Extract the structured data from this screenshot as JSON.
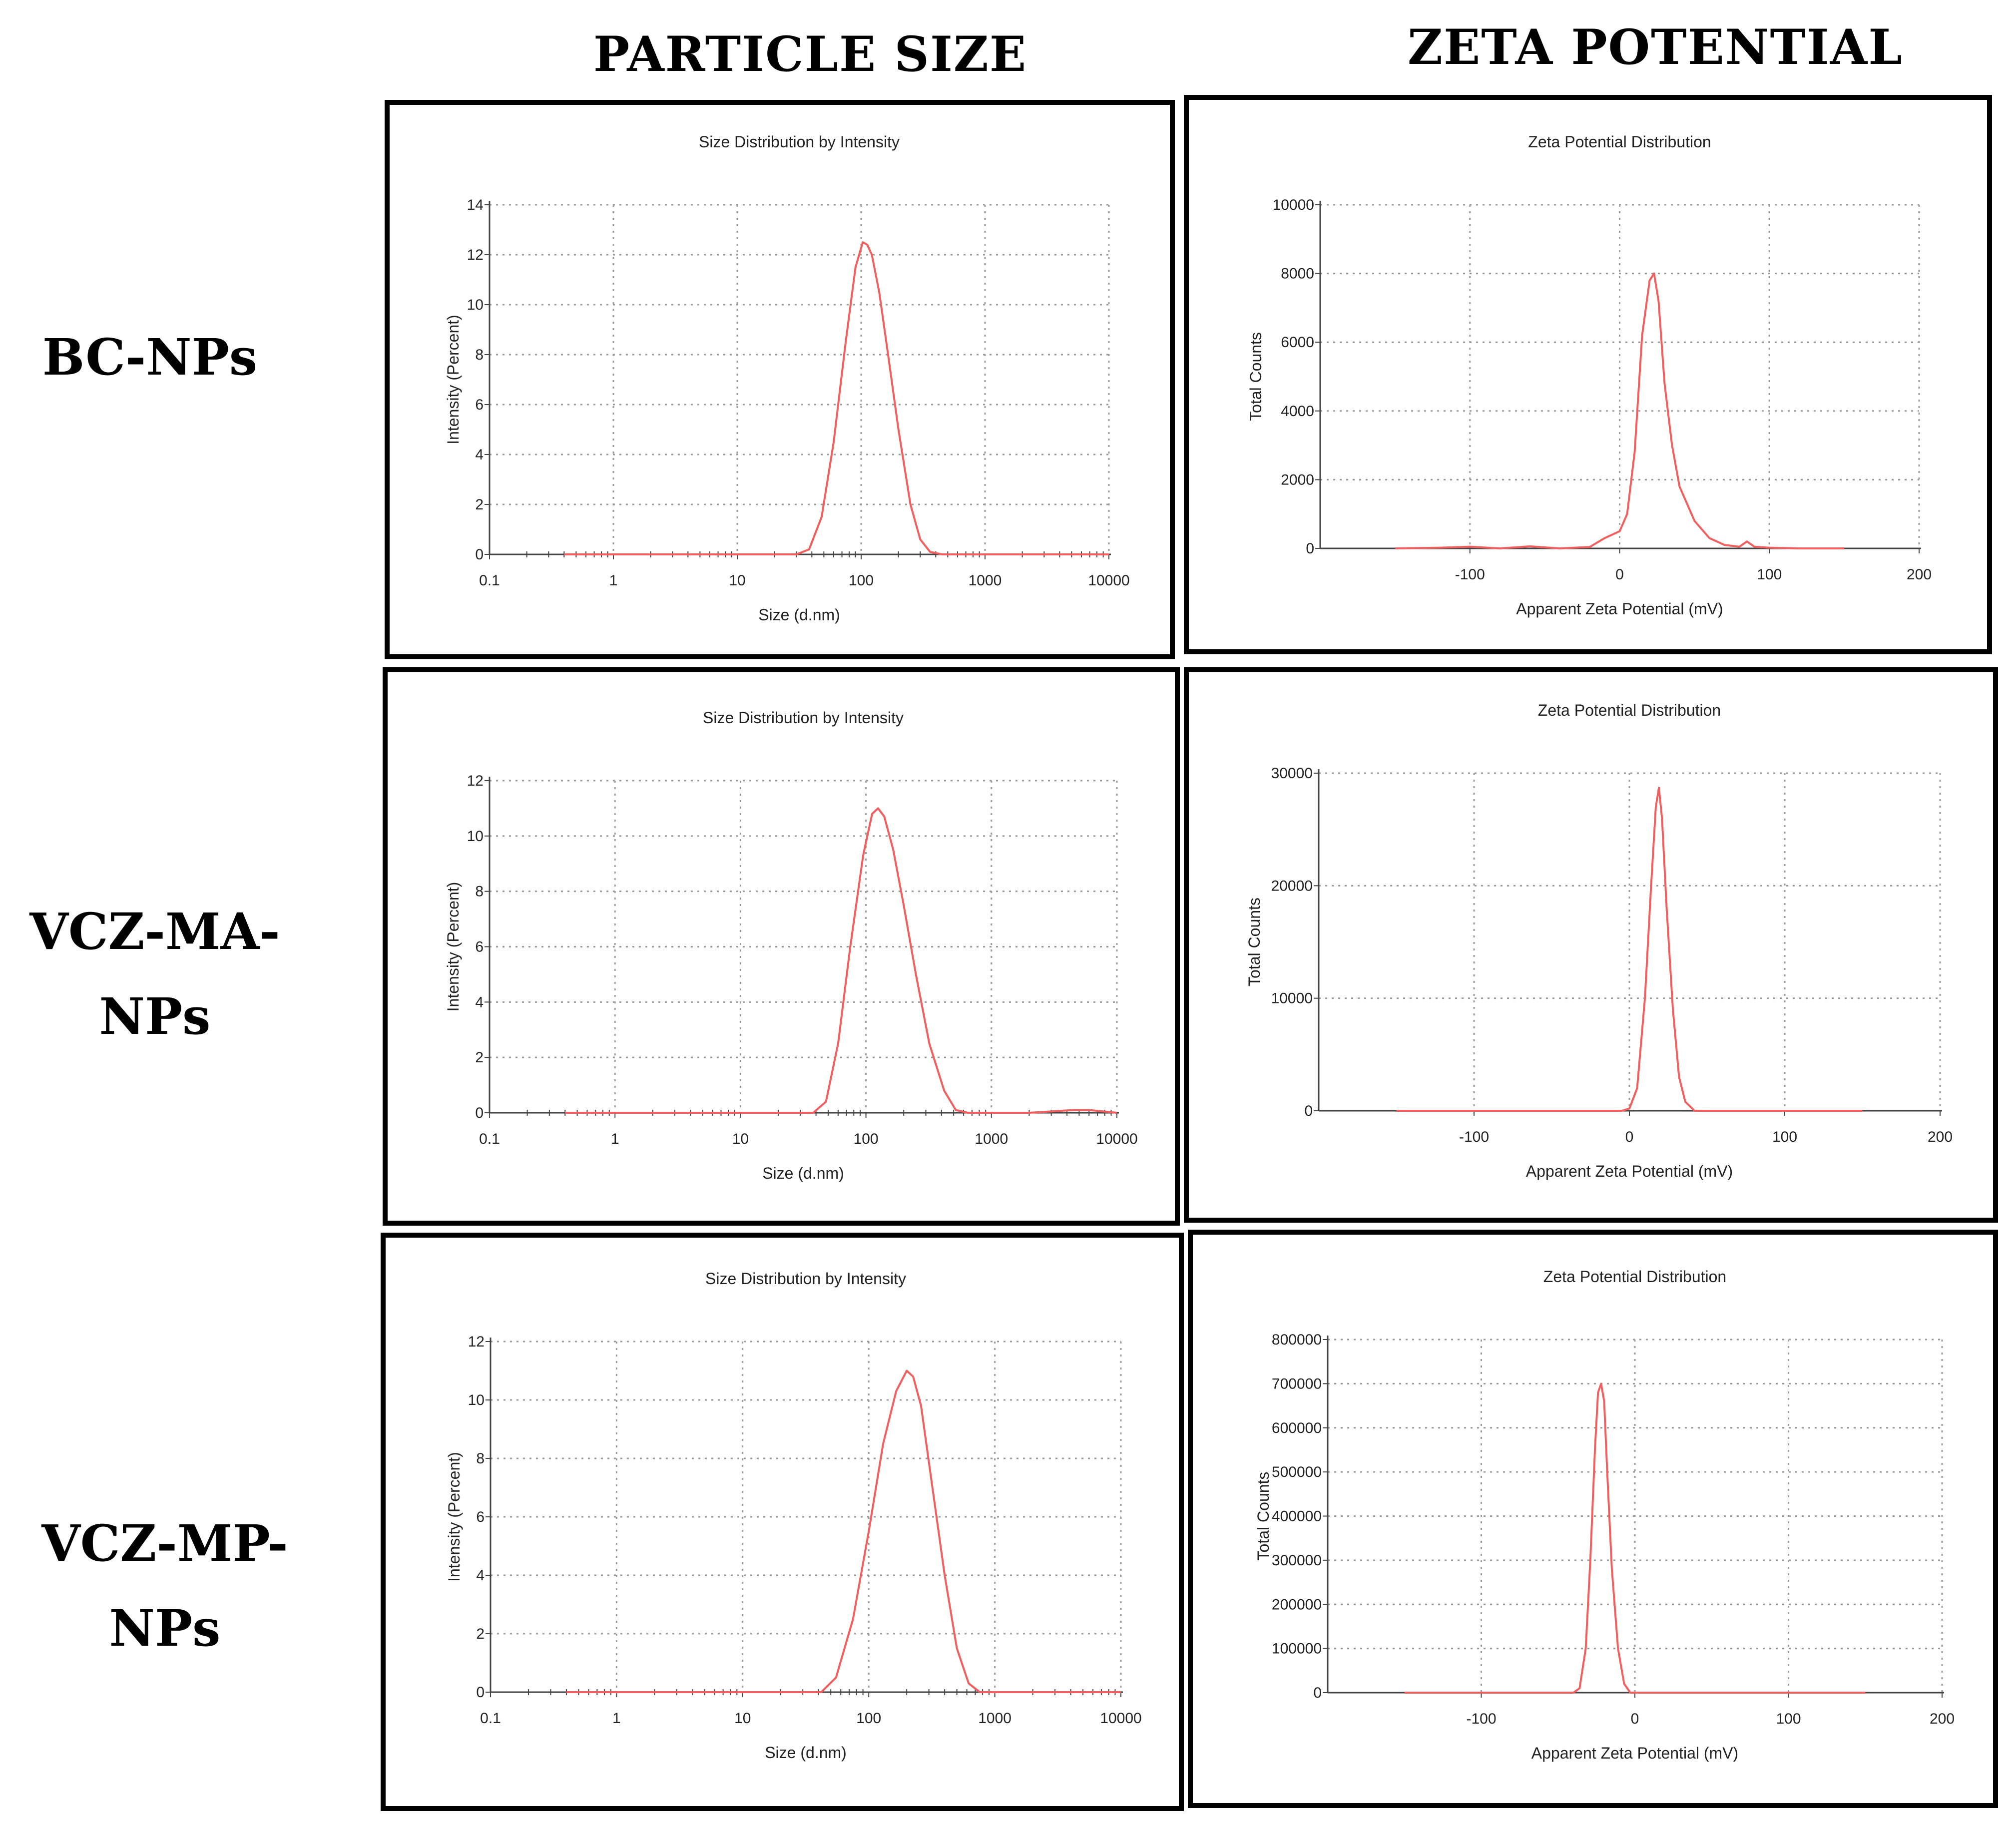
{
  "headers": {
    "particle_size": "PARTICLE SIZE",
    "zeta_potential": "ZETA POTENTIAL"
  },
  "rows": [
    {
      "label_lines": [
        "BC-NPs"
      ]
    },
    {
      "label_lines": [
        "VCZ-MA-",
        "NPs"
      ]
    },
    {
      "label_lines": [
        "VCZ-MP-",
        "NPs"
      ]
    }
  ],
  "colors": {
    "curve": "#f06060",
    "grid": "#9a9a9a",
    "axis": "#444444"
  },
  "chart_data": [
    {
      "id": "bc-size",
      "type": "line",
      "scale_x": "log",
      "title": "Size Distribution by Intensity",
      "xlabel": "Size (d.nm)",
      "ylabel": "Intensity (Percent)",
      "xlim": [
        0.1,
        10000
      ],
      "ylim": [
        0,
        14
      ],
      "xticks": [
        0.1,
        1,
        10,
        100,
        1000,
        10000
      ],
      "xtick_labels": [
        "0.1",
        "1",
        "10",
        "100",
        "1000",
        "10000"
      ],
      "yticks": [
        0,
        2,
        4,
        6,
        8,
        10,
        12,
        14
      ],
      "ytick_labels": [
        "0",
        "2",
        "4",
        "6",
        "8",
        "10",
        "12",
        "14"
      ],
      "series": [
        {
          "name": "Intensity",
          "x": [
            0.4,
            30,
            38,
            48,
            60,
            75,
            90,
            103,
            112,
            122,
            140,
            165,
            200,
            250,
            300,
            360,
            450,
            10000
          ],
          "y": [
            0,
            0,
            0.2,
            1.5,
            4.5,
            8.5,
            11.5,
            12.5,
            12.4,
            12,
            10.5,
            8,
            5,
            2,
            0.6,
            0.1,
            0,
            0
          ]
        }
      ]
    },
    {
      "id": "bc-zeta",
      "type": "line",
      "scale_x": "linear",
      "title": "Zeta Potential Distribution",
      "xlabel": "Apparent Zeta Potential (mV)",
      "ylabel": "Total Counts",
      "xlim": [
        -200,
        200
      ],
      "ylim": [
        0,
        10000
      ],
      "xticks": [
        -100,
        0,
        100,
        200
      ],
      "xtick_labels": [
        "-100",
        "0",
        "100",
        "200"
      ],
      "yticks": [
        0,
        2000,
        4000,
        6000,
        8000,
        10000
      ],
      "ytick_labels": [
        "0",
        "2000",
        "4000",
        "6000",
        "8000",
        "10000"
      ],
      "series": [
        {
          "name": "Total Counts",
          "x": [
            -150,
            -120,
            -100,
            -80,
            -60,
            -40,
            -20,
            -10,
            0,
            5,
            10,
            15,
            20,
            23,
            26,
            30,
            35,
            40,
            50,
            60,
            70,
            80,
            85,
            90,
            100,
            120,
            150
          ],
          "y": [
            0,
            20,
            50,
            0,
            60,
            0,
            40,
            300,
            500,
            1000,
            2800,
            6200,
            7800,
            8000,
            7200,
            4800,
            3000,
            1800,
            800,
            300,
            100,
            50,
            200,
            50,
            20,
            0,
            0
          ]
        }
      ]
    },
    {
      "id": "ma-size",
      "type": "line",
      "scale_x": "log",
      "title": "Size Distribution by Intensity",
      "xlabel": "Size (d.nm)",
      "ylabel": "Intensity (Percent)",
      "xlim": [
        0.1,
        10000
      ],
      "ylim": [
        0,
        12
      ],
      "xticks": [
        0.1,
        1,
        10,
        100,
        1000,
        10000
      ],
      "xtick_labels": [
        "0.1",
        "1",
        "10",
        "100",
        "1000",
        "10000"
      ],
      "yticks": [
        0,
        2,
        4,
        6,
        8,
        10,
        12
      ],
      "ytick_labels": [
        "0",
        "2",
        "4",
        "6",
        "8",
        "10",
        "12"
      ],
      "series": [
        {
          "name": "Intensity",
          "x": [
            0.4,
            38,
            48,
            60,
            75,
            95,
            112,
            125,
            140,
            165,
            200,
            250,
            320,
            420,
            520,
            650,
            2000,
            4500,
            6000,
            10000
          ],
          "y": [
            0,
            0,
            0.4,
            2.5,
            6,
            9.3,
            10.8,
            11,
            10.7,
            9.5,
            7.5,
            5,
            2.5,
            0.8,
            0.1,
            0,
            0,
            0.1,
            0.1,
            0
          ]
        }
      ]
    },
    {
      "id": "ma-zeta",
      "type": "line",
      "scale_x": "linear",
      "title": "Zeta Potential Distribution",
      "xlabel": "Apparent Zeta Potential (mV)",
      "ylabel": "Total Counts",
      "xlim": [
        -200,
        200
      ],
      "ylim": [
        0,
        30000
      ],
      "xticks": [
        -100,
        0,
        100,
        200
      ],
      "xtick_labels": [
        "-100",
        "0",
        "100",
        "200"
      ],
      "yticks": [
        0,
        10000,
        20000,
        30000
      ],
      "ytick_labels": [
        "0",
        "10000",
        "20000",
        "30000"
      ],
      "series": [
        {
          "name": "Total Counts",
          "x": [
            -150,
            -5,
            0,
            5,
            10,
            14,
            17,
            19,
            21,
            24,
            28,
            32,
            36,
            42,
            150
          ],
          "y": [
            0,
            0,
            200,
            2000,
            10000,
            20000,
            27000,
            28700,
            26000,
            18000,
            9000,
            3000,
            800,
            0,
            0
          ]
        }
      ]
    },
    {
      "id": "mp-size",
      "type": "line",
      "scale_x": "log",
      "title": "Size Distribution by Intensity",
      "xlabel": "Size (d.nm)",
      "ylabel": "Intensity (Percent)",
      "xlim": [
        0.1,
        10000
      ],
      "ylim": [
        0,
        12
      ],
      "xticks": [
        0.1,
        1,
        10,
        100,
        1000,
        10000
      ],
      "xtick_labels": [
        "0.1",
        "1",
        "10",
        "100",
        "1000",
        "10000"
      ],
      "yticks": [
        0,
        2,
        4,
        6,
        8,
        10,
        12
      ],
      "ytick_labels": [
        "0",
        "2",
        "4",
        "6",
        "8",
        "10",
        "12"
      ],
      "series": [
        {
          "name": "Intensity",
          "x": [
            0.4,
            42,
            55,
            75,
            100,
            130,
            165,
            200,
            225,
            260,
            320,
            400,
            500,
            620,
            760,
            10000
          ],
          "y": [
            0,
            0,
            0.5,
            2.5,
            5.5,
            8.5,
            10.3,
            11,
            10.8,
            9.8,
            7,
            4,
            1.5,
            0.3,
            0,
            0
          ]
        }
      ]
    },
    {
      "id": "mp-zeta",
      "type": "line",
      "scale_x": "linear",
      "title": "Zeta Potential Distribution",
      "xlabel": "Apparent Zeta Potential (mV)",
      "ylabel": "Total Counts",
      "xlim": [
        -200,
        200
      ],
      "ylim": [
        0,
        800000
      ],
      "xticks": [
        -100,
        0,
        100,
        200
      ],
      "xtick_labels": [
        "-100",
        "0",
        "100",
        "200"
      ],
      "yticks": [
        0,
        100000,
        200000,
        300000,
        400000,
        500000,
        600000,
        700000,
        800000
      ],
      "ytick_labels": [
        "0",
        "100000",
        "200000",
        "300000",
        "400000",
        "500000",
        "600000",
        "700000",
        "800000"
      ],
      "series": [
        {
          "name": "Total Counts",
          "x": [
            -150,
            -40,
            -36,
            -32,
            -29,
            -26,
            -24,
            -22,
            -20,
            -18,
            -15,
            -11,
            -7,
            -3,
            150
          ],
          "y": [
            0,
            0,
            10000,
            100000,
            300000,
            550000,
            680000,
            700000,
            660000,
            500000,
            280000,
            100000,
            20000,
            0,
            0
          ]
        }
      ]
    }
  ]
}
